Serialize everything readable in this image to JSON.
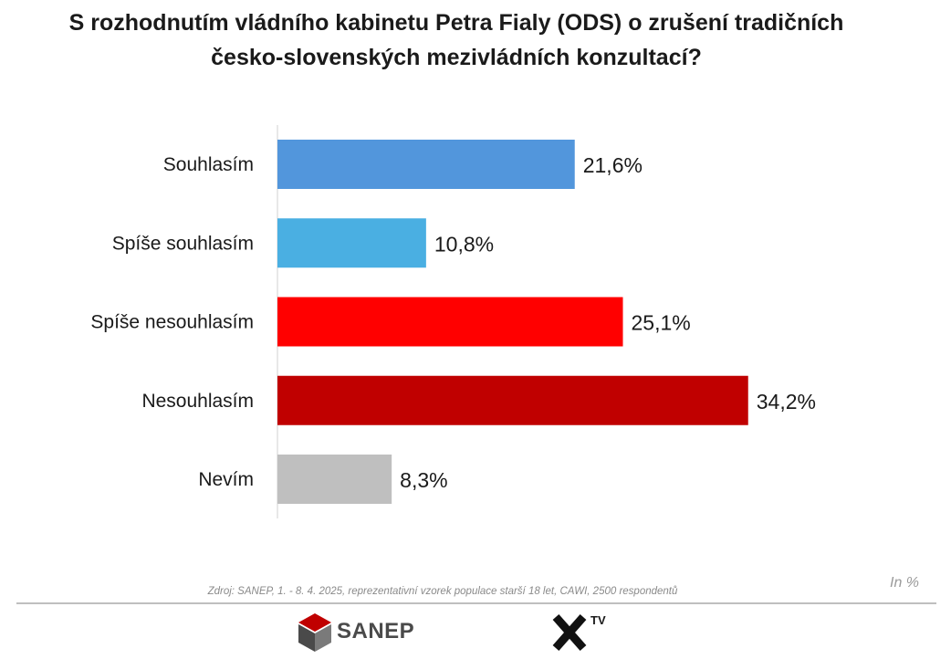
{
  "title": {
    "line1": "S rozhodnutím vládního kabinetu Petra Fialy (ODS) o zrušení tradičních",
    "line2": "česko-slovenských mezivládních konzultací?"
  },
  "chart_data": {
    "type": "bar",
    "orientation": "horizontal",
    "categories": [
      "Souhlasím",
      "Spíše souhlasím",
      "Spíše nesouhlasím",
      "Nesouhlasím",
      "Nevím"
    ],
    "values": [
      21.6,
      10.8,
      25.1,
      34.2,
      8.3
    ],
    "value_labels": [
      "21,6%",
      "10,8%",
      "25,1%",
      "34,2%",
      "8,3%"
    ],
    "colors": [
      "#5296dc",
      "#4aafe2",
      "#ff0000",
      "#c00000",
      "#bfbfbf"
    ],
    "xlim": [
      0,
      45
    ],
    "grid": false,
    "legend": "none"
  },
  "source": "Zdroj: SANEP, 1. - 8. 4. 2025, reprezentativní vzorek populace starší 18 let, CAWI, 2500 respondentů",
  "unit_label": "In %",
  "logos": {
    "sanep": "SANEP",
    "xtv_mark": "X",
    "xtv_suffix": "TV"
  }
}
